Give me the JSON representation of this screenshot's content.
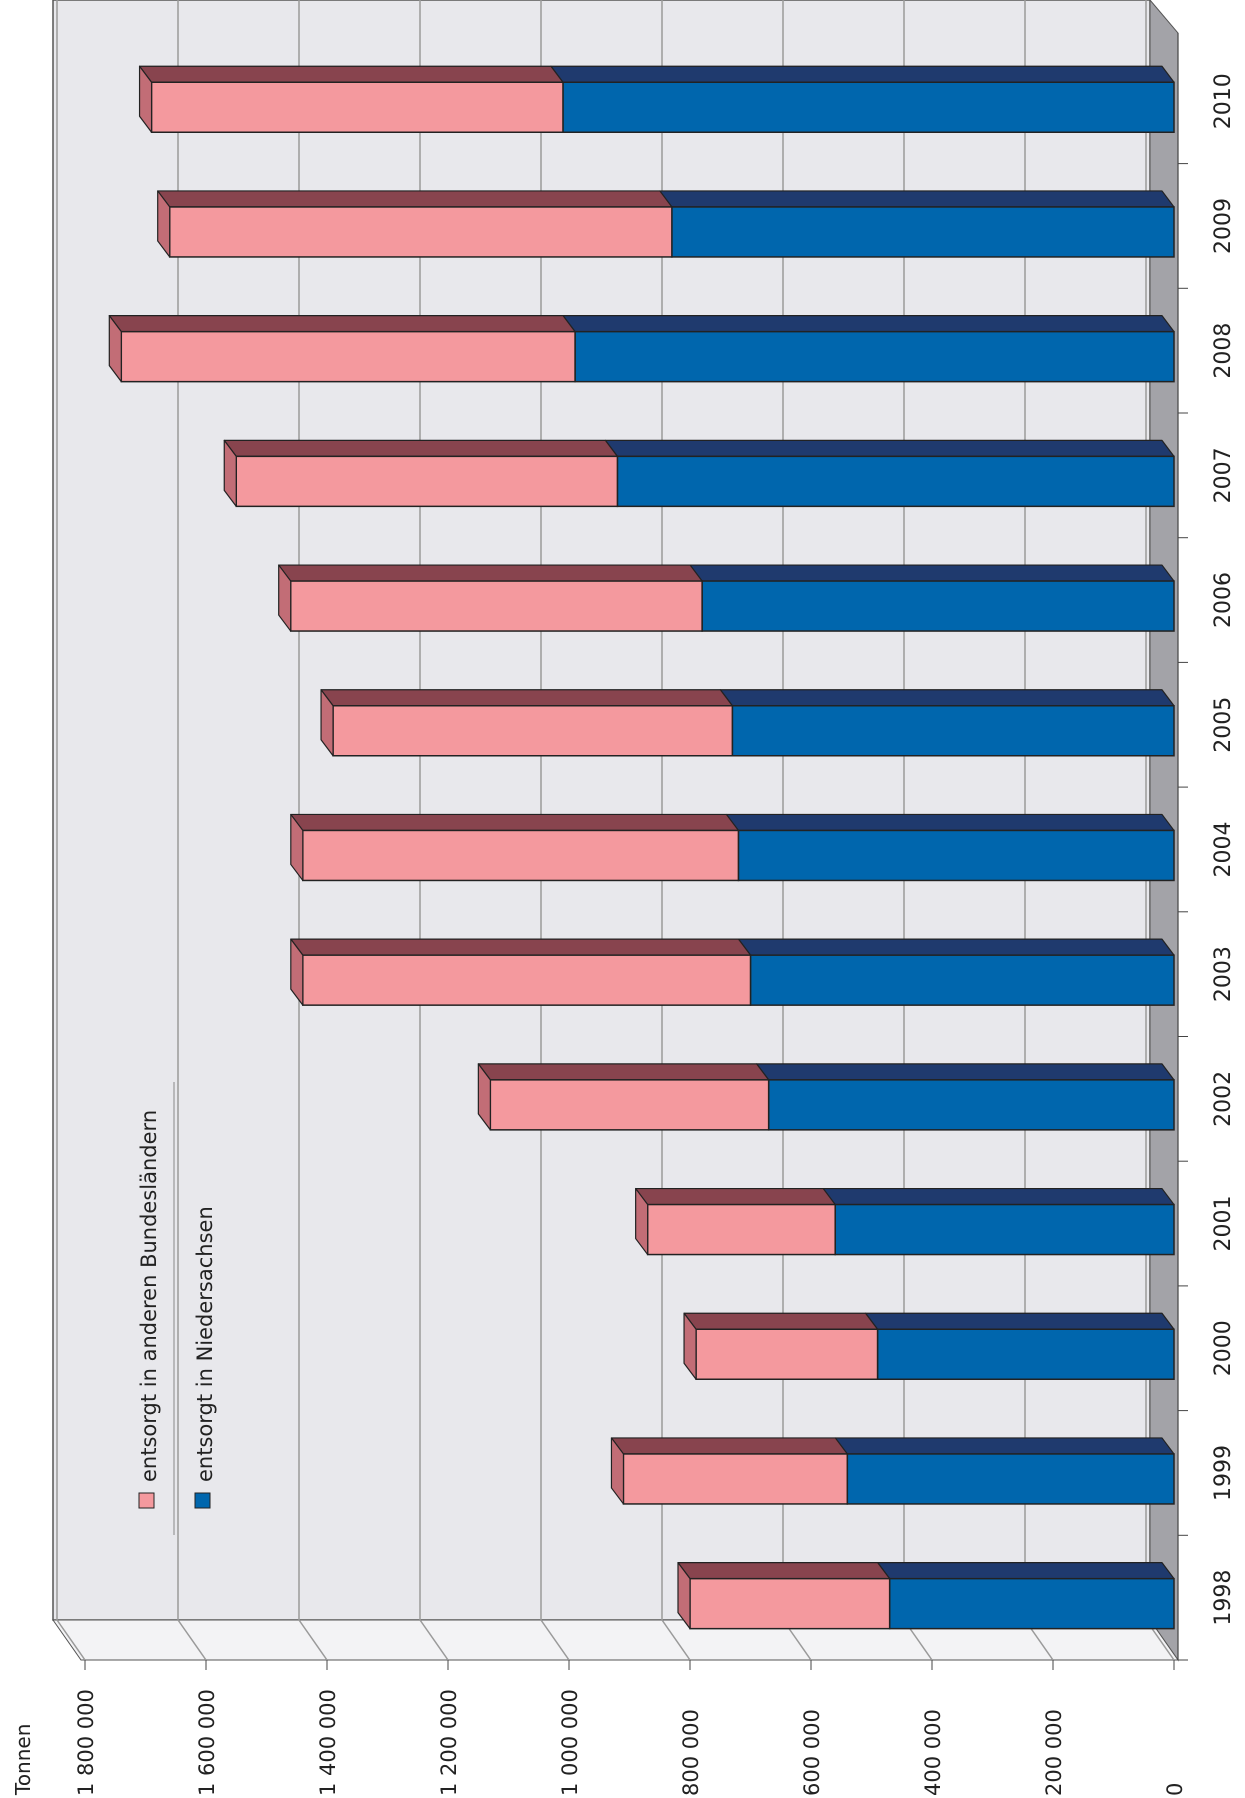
{
  "chart_data": {
    "type": "bar",
    "stacked": true,
    "orientation": "horizontal-rotated",
    "unit_label": "Tonnen",
    "categories": [
      "1998",
      "1999",
      "2000",
      "2001",
      "2002",
      "2003",
      "2004",
      "2005",
      "2006",
      "2007",
      "2008",
      "2009",
      "2010"
    ],
    "series": [
      {
        "name": "entsorgt in Niedersachsen",
        "color": "#0066ad",
        "top_color": "#1f3a6e",
        "values": [
          470000,
          540000,
          490000,
          560000,
          670000,
          700000,
          720000,
          730000,
          780000,
          920000,
          990000,
          830000,
          1010000
        ]
      },
      {
        "name": "entsorgt in anderen Bundesländern",
        "color": "#f4999e",
        "top_color": "#88444e",
        "values": [
          330000,
          370000,
          300000,
          310000,
          460000,
          740000,
          720000,
          660000,
          680000,
          630000,
          750000,
          830000,
          680000
        ]
      }
    ],
    "y_ticks": [
      {
        "v": 0,
        "label": "0"
      },
      {
        "v": 200000,
        "label": "200 000"
      },
      {
        "v": 400000,
        "label": "400 000"
      },
      {
        "v": 600000,
        "label": "600 000"
      },
      {
        "v": 800000,
        "label": "800 000"
      },
      {
        "v": 1000000,
        "label": "1 000 000"
      },
      {
        "v": 1200000,
        "label": "1 200 000"
      },
      {
        "v": 1400000,
        "label": "1 400 000"
      },
      {
        "v": 1600000,
        "label": "1 600 000"
      },
      {
        "v": 1800000,
        "label": "1 800 000"
      }
    ],
    "ylim": [
      0,
      1800000
    ],
    "grid": true,
    "legend_position": "inside-left",
    "colors": {
      "wall": "#e8e8ec",
      "floor": "#a3a3a8",
      "grid": "#9a9a9a"
    }
  }
}
